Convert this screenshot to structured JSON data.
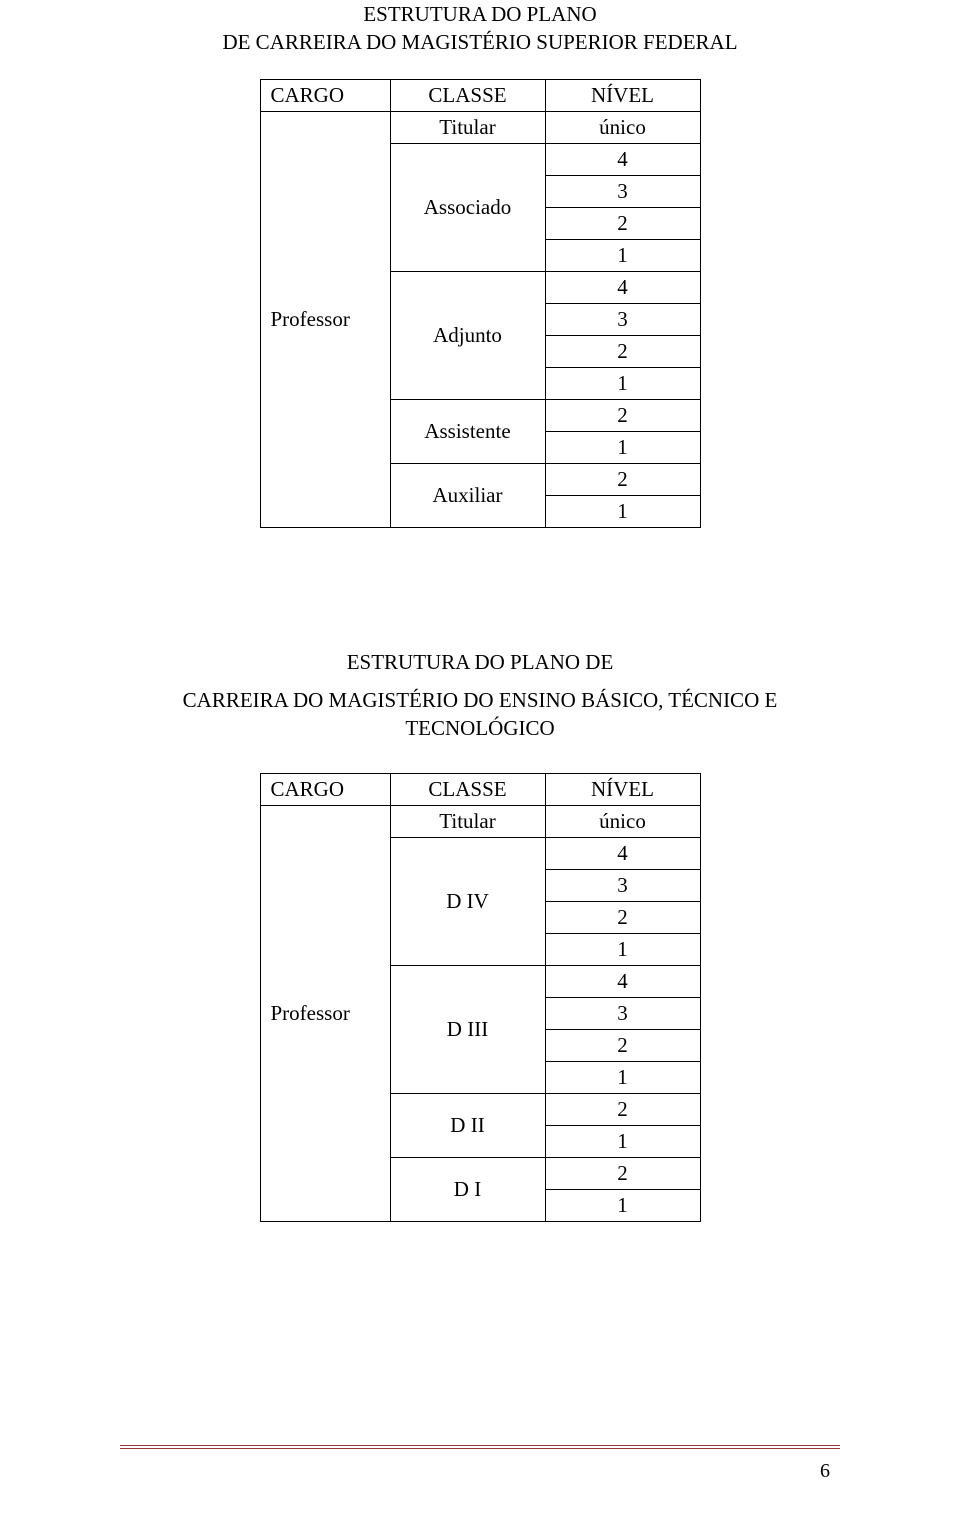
{
  "heading1_line1": "ESTRUTURA DO PLANO",
  "heading1_line2": "DE CARREIRA DO MAGISTÉRIO SUPERIOR FEDERAL",
  "heading2_line1": "ESTRUTURA DO PLANO DE",
  "heading2_line2": "CARREIRA DO MAGISTÉRIO DO ENSINO BÁSICO, TÉCNICO E TECNOLÓGICO",
  "table1": {
    "headers": {
      "cargo": "CARGO",
      "classe": "CLASSE",
      "nivel": "NÍVEL"
    },
    "cargo": "Professor",
    "rows": {
      "titular_classe": "Titular",
      "titular_nivel": "único",
      "associado_classe": "Associado",
      "associado_niveis": [
        "4",
        "3",
        "2",
        "1"
      ],
      "adjunto_classe": "Adjunto",
      "adjunto_niveis": [
        "4",
        "3",
        "2",
        "1"
      ],
      "assistente_classe": "Assistente",
      "assistente_niveis": [
        "2",
        "1"
      ],
      "auxiliar_classe": "Auxiliar",
      "auxiliar_niveis": [
        "2",
        "1"
      ]
    }
  },
  "table2": {
    "headers": {
      "cargo": "CARGO",
      "classe": "CLASSE",
      "nivel": "NÍVEL"
    },
    "cargo": "Professor",
    "rows": {
      "titular_classe": "Titular",
      "titular_nivel": "único",
      "d4_classe": "D IV",
      "d4_niveis": [
        "4",
        "3",
        "2",
        "1"
      ],
      "d3_classe": "D III",
      "d3_niveis": [
        "4",
        "3",
        "2",
        "1"
      ],
      "d2_classe": "D II",
      "d2_niveis": [
        "2",
        "1"
      ],
      "d1_classe": "D I",
      "d1_niveis": [
        "2",
        "1"
      ]
    }
  },
  "page_number": "6",
  "colors": {
    "rule": "#953735",
    "text": "#000000",
    "background": "#ffffff",
    "border": "#000000"
  }
}
